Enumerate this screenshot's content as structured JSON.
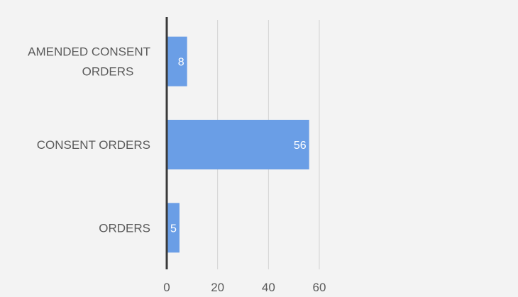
{
  "chart_data": {
    "type": "bar",
    "orientation": "horizontal",
    "categories": [
      [
        "AMENDED CONSENT",
        "ORDERS"
      ],
      [
        "CONSENT ORDERS"
      ],
      [
        "ORDERS"
      ]
    ],
    "values": [
      8,
      56,
      5
    ],
    "data_labels": [
      "8",
      "56",
      "5"
    ],
    "xlim": [
      0,
      60
    ],
    "xticks": [
      0,
      20,
      40,
      60
    ],
    "xtick_labels": [
      "0",
      "20",
      "40",
      "60"
    ],
    "grid": "vertical",
    "legend": "none",
    "colors": {
      "bar": "#6a9ee6",
      "axis": "#3a3a3a",
      "grid": "#d3d3d3",
      "text": "#5a5a5a",
      "data_label": "#ffffff"
    }
  }
}
